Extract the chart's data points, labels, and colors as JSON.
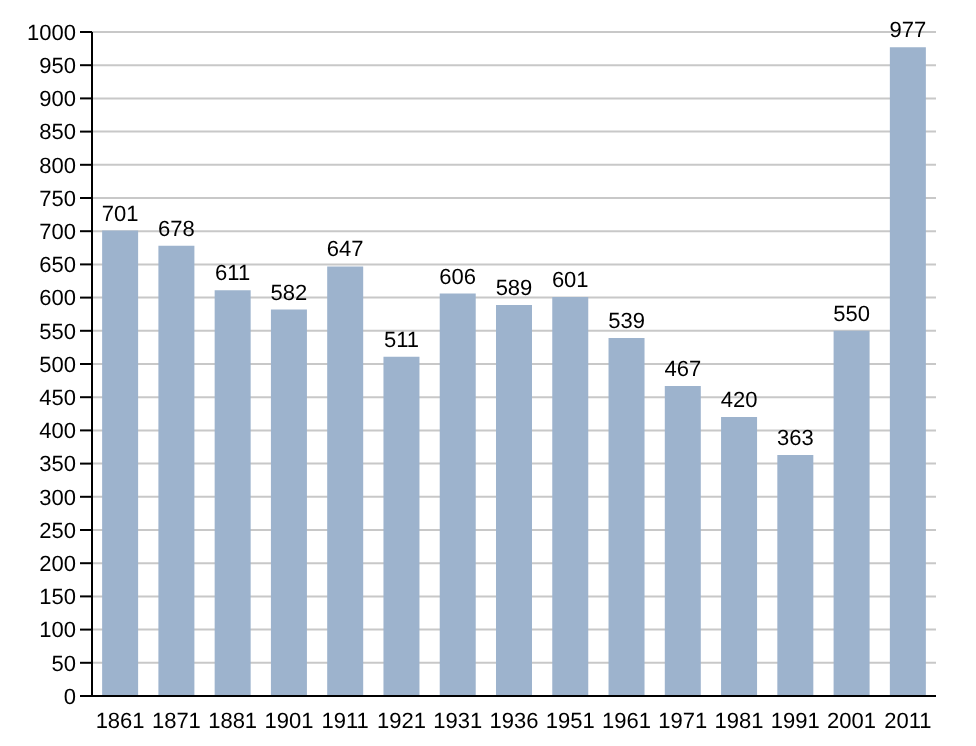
{
  "chart_data": {
    "type": "bar",
    "categories": [
      "1861",
      "1871",
      "1881",
      "1901",
      "1911",
      "1921",
      "1931",
      "1936",
      "1951",
      "1961",
      "1971",
      "1981",
      "1991",
      "2001",
      "2011"
    ],
    "values": [
      701,
      678,
      611,
      582,
      647,
      511,
      606,
      589,
      601,
      539,
      467,
      420,
      363,
      550,
      977
    ],
    "color": "#9db3cd",
    "ylim": [
      0,
      1000
    ],
    "yticks": [
      0,
      50,
      100,
      150,
      200,
      250,
      300,
      350,
      400,
      450,
      500,
      550,
      600,
      650,
      700,
      750,
      800,
      850,
      900,
      950,
      1000
    ],
    "grid": "y",
    "data_labels": true
  }
}
